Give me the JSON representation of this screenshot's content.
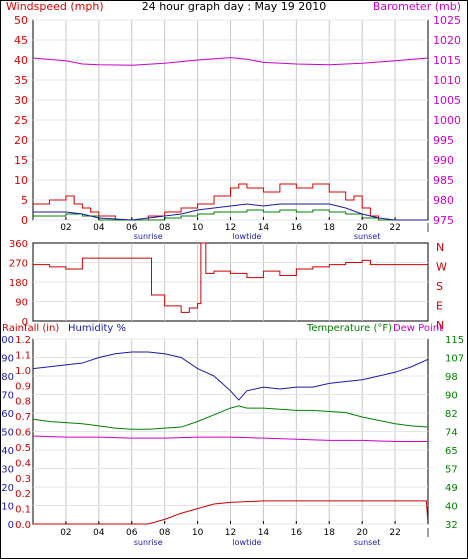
{
  "title": "24 hour graph day : May 19 2010",
  "colors": {
    "wind": "#dd0000",
    "gust": "#dd0000",
    "windavg_blue": "#1a1aaa",
    "windavg_green": "#008000",
    "barometer": "#cc00cc",
    "direction": "#cc0000",
    "rain": "#cc0000",
    "humidity": "#1a1aaa",
    "temperature": "#008000",
    "dewpoint": "#cc00cc",
    "grid": "#c8c8c8",
    "axis": "#000000"
  },
  "chart_data": [
    {
      "type": "line",
      "name": "wind-barometer",
      "left_label": "Windspeed (mph)",
      "right_label": "Barometer (mb)",
      "left_ticks": [
        "0",
        "5",
        "10",
        "15",
        "20",
        "25",
        "30",
        "35",
        "40",
        "45",
        "50"
      ],
      "right_ticks": [
        "975",
        "980",
        "985",
        "990",
        "995",
        "1000",
        "1005",
        "1010",
        "1015",
        "1020",
        "1025"
      ],
      "left_range": [
        0,
        50
      ],
      "right_range": [
        975,
        1025
      ],
      "x_hours": [
        0,
        24
      ],
      "barometer": {
        "x": [
          0,
          2,
          3,
          4,
          6,
          8,
          10,
          12,
          13,
          14,
          16,
          18,
          20,
          22,
          24
        ],
        "y": [
          1015.5,
          1014.8,
          1014.0,
          1013.8,
          1013.7,
          1014.2,
          1015.0,
          1015.6,
          1015.2,
          1014.4,
          1014.0,
          1013.8,
          1014.2,
          1014.8,
          1015.5
        ]
      },
      "gust": {
        "x": [
          0,
          1,
          2,
          2.5,
          3,
          3.5,
          4,
          5,
          6,
          7,
          8,
          9,
          10,
          11,
          12,
          12.5,
          13,
          14,
          15,
          16,
          17,
          18,
          19,
          19.5,
          20,
          20.5,
          21,
          22,
          23,
          24
        ],
        "y": [
          4,
          5,
          6,
          4,
          3,
          2,
          1,
          0,
          0,
          1,
          2,
          3,
          4,
          6,
          8,
          9,
          8,
          7,
          9,
          8,
          9,
          7,
          5,
          6,
          3,
          1,
          0,
          0,
          0,
          0
        ]
      },
      "wind_avg": {
        "x": [
          0,
          2,
          3,
          4,
          6,
          7,
          8,
          9,
          10,
          11,
          12,
          13,
          14,
          15,
          16,
          17,
          18,
          19,
          20,
          21,
          22,
          24
        ],
        "y": [
          2,
          2,
          1.5,
          0.5,
          0,
          0.5,
          1,
          1.5,
          2.5,
          3,
          3.5,
          4,
          3.5,
          4,
          4,
          4,
          4,
          3,
          1.5,
          0.5,
          0,
          0
        ]
      },
      "wind_min": {
        "x": [
          0,
          2,
          3,
          4,
          6,
          7,
          8,
          9,
          10,
          11,
          12,
          13,
          14,
          15,
          16,
          17,
          18,
          19,
          20,
          21,
          22,
          24
        ],
        "y": [
          1,
          1.5,
          1,
          0,
          0,
          0,
          0.5,
          1,
          1.5,
          2,
          2,
          2.5,
          2,
          2.5,
          2,
          2.5,
          2,
          1.5,
          0.5,
          0,
          0,
          0
        ]
      }
    },
    {
      "type": "line",
      "name": "wind-direction",
      "left_ticks": [
        "0",
        "90",
        "180",
        "270",
        "360"
      ],
      "right_ticks": [
        "N",
        "W",
        "S",
        "E",
        "N"
      ],
      "left_range": [
        0,
        360
      ],
      "direction": {
        "x": [
          0,
          1,
          2,
          3,
          4,
          5,
          6,
          7,
          7.2,
          8,
          9,
          9.5,
          10,
          10.2,
          10.5,
          11,
          12,
          13,
          14,
          15,
          16,
          17,
          18,
          19,
          20,
          20.5,
          21,
          22,
          24
        ],
        "y": [
          260,
          250,
          240,
          290,
          290,
          290,
          290,
          290,
          120,
          70,
          40,
          60,
          80,
          360,
          220,
          230,
          220,
          200,
          230,
          210,
          240,
          250,
          260,
          270,
          280,
          260,
          260,
          260,
          260
        ]
      }
    },
    {
      "type": "line",
      "name": "rain-humidity-temp",
      "labels": {
        "rainfall": "Rainfall (in)",
        "humidity": "Humidity %",
        "temperature": "Temperature (°F)",
        "dewpoint": "Dew Point"
      },
      "humidity_ticks": [
        "0",
        "10",
        "20",
        "30",
        "40",
        "50",
        "60",
        "70",
        "80",
        "90",
        "100"
      ],
      "rain_ticks": [
        "0.0",
        "0.1",
        "0.2",
        "0.3",
        "0.4",
        "0.5",
        "0.6",
        "0.7",
        "0.8",
        "0.9",
        "1.0",
        "1.1",
        "1.2"
      ],
      "temp_ticks": [
        "32",
        "40",
        "49",
        "57",
        "65",
        "74",
        "82",
        "90",
        "98",
        "107",
        "115"
      ],
      "temp_range": [
        32,
        115
      ],
      "humidity": {
        "x": [
          0,
          1,
          2,
          3,
          4,
          5,
          6,
          7,
          8,
          9,
          10,
          11,
          12,
          12.5,
          13,
          14,
          15,
          16,
          17,
          18,
          19,
          20,
          21,
          22,
          23,
          24
        ],
        "y": [
          84,
          85,
          86,
          87,
          90,
          92,
          93,
          93,
          92,
          90,
          84,
          80,
          72,
          67,
          72,
          74,
          73,
          74,
          74,
          76,
          77,
          78,
          80,
          82,
          85,
          89
        ]
      },
      "temperature": {
        "x": [
          0,
          1,
          2,
          3,
          4,
          5,
          6,
          7,
          8,
          9,
          10,
          11,
          12,
          12.5,
          13,
          14,
          15,
          16,
          17,
          18,
          19,
          20,
          21,
          22,
          23,
          24
        ],
        "y": [
          79,
          78,
          77.5,
          77,
          76,
          75,
          74.5,
          74.5,
          75,
          75.5,
          78,
          81,
          84,
          85,
          84,
          84,
          83.5,
          83,
          83,
          82.5,
          82,
          80,
          78.5,
          77,
          76,
          75.5
        ]
      },
      "dewpoint": {
        "x": [
          0,
          2,
          4,
          6,
          8,
          10,
          12,
          14,
          16,
          18,
          20,
          22,
          24
        ],
        "y": [
          71.5,
          71,
          71,
          70.5,
          70.5,
          71,
          71,
          70.5,
          70,
          69.5,
          69.5,
          69,
          69
        ]
      },
      "rainfall": {
        "x": [
          0,
          6,
          7,
          8,
          9,
          10,
          11,
          12,
          14,
          16,
          18,
          20,
          22,
          23.9,
          24
        ],
        "y": [
          0.0,
          0.0,
          0.0,
          0.03,
          0.07,
          0.1,
          0.13,
          0.14,
          0.15,
          0.15,
          0.15,
          0.15,
          0.15,
          0.15,
          0.0
        ]
      }
    }
  ],
  "x_ticks": [
    "02",
    "04",
    "06",
    "08",
    "10",
    "12",
    "14",
    "16",
    "18",
    "20",
    "22",
    "|"
  ],
  "markers": {
    "sunrise": "sunrise",
    "lowtide": "lowtide",
    "sunset": "sunset"
  }
}
